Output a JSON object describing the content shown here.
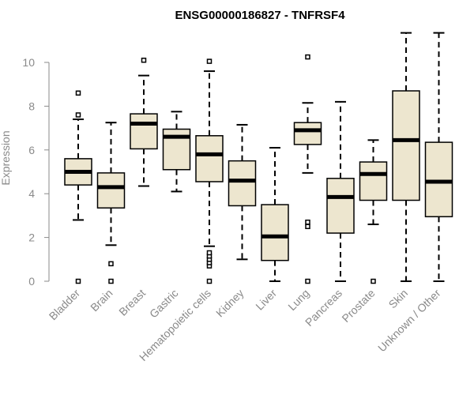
{
  "chart_data": {
    "type": "boxplot",
    "title": "ENSG00000186827 - TNFRSF4",
    "xlabel": "",
    "ylabel": "Expression",
    "ylim": [
      0,
      11.5
    ],
    "yticks": [
      0,
      2,
      4,
      6,
      8,
      10
    ],
    "box_fill": "#ede6cf",
    "categories": [
      "Bladder",
      "Brain",
      "Breast",
      "Gastric",
      "Hematopoietic cells",
      "Kidney",
      "Liver",
      "Lung",
      "Pancreas",
      "Prostate",
      "Skin",
      "Unknown / Other"
    ],
    "boxes": [
      {
        "name": "Bladder",
        "whisker_low": 2.8,
        "q1": 4.4,
        "median": 5.0,
        "q3": 5.6,
        "whisker_high": 7.4,
        "outliers": [
          0.0,
          7.6,
          8.6
        ]
      },
      {
        "name": "Brain",
        "whisker_low": 1.65,
        "q1": 3.35,
        "median": 4.3,
        "q3": 4.95,
        "whisker_high": 7.25,
        "outliers": [
          0.0,
          0.8
        ]
      },
      {
        "name": "Breast",
        "whisker_low": 4.35,
        "q1": 6.05,
        "median": 7.2,
        "q3": 7.65,
        "whisker_high": 9.4,
        "outliers": [
          10.1
        ]
      },
      {
        "name": "Gastric",
        "whisker_low": 4.1,
        "q1": 5.1,
        "median": 6.6,
        "q3": 6.95,
        "whisker_high": 7.75,
        "outliers": []
      },
      {
        "name": "Hematopoietic cells",
        "whisker_low": 1.6,
        "q1": 4.55,
        "median": 5.8,
        "q3": 6.65,
        "whisker_high": 9.6,
        "outliers": [
          0.0,
          0.7,
          0.85,
          1.0,
          1.15,
          1.3,
          10.05
        ]
      },
      {
        "name": "Kidney",
        "whisker_low": 1.0,
        "q1": 3.45,
        "median": 4.6,
        "q3": 5.5,
        "whisker_high": 7.15,
        "outliers": []
      },
      {
        "name": "Liver",
        "whisker_low": 0.0,
        "q1": 0.95,
        "median": 2.05,
        "q3": 3.5,
        "whisker_high": 6.1,
        "outliers": []
      },
      {
        "name": "Lung",
        "whisker_low": 4.95,
        "q1": 6.25,
        "median": 6.9,
        "q3": 7.25,
        "whisker_high": 8.15,
        "outliers": [
          0.0,
          2.5,
          2.7,
          10.25
        ]
      },
      {
        "name": "Pancreas",
        "whisker_low": 0.0,
        "q1": 2.2,
        "median": 3.85,
        "q3": 4.7,
        "whisker_high": 8.2,
        "outliers": []
      },
      {
        "name": "Prostate",
        "whisker_low": 2.6,
        "q1": 3.7,
        "median": 4.9,
        "q3": 5.45,
        "whisker_high": 6.45,
        "outliers": [
          0.0
        ]
      },
      {
        "name": "Skin",
        "whisker_low": 0.0,
        "q1": 3.7,
        "median": 6.45,
        "q3": 8.7,
        "whisker_high": 11.35,
        "outliers": []
      },
      {
        "name": "Unknown / Other",
        "whisker_low": 0.0,
        "q1": 2.95,
        "median": 4.55,
        "q3": 6.35,
        "whisker_high": 11.35,
        "outliers": []
      }
    ]
  }
}
